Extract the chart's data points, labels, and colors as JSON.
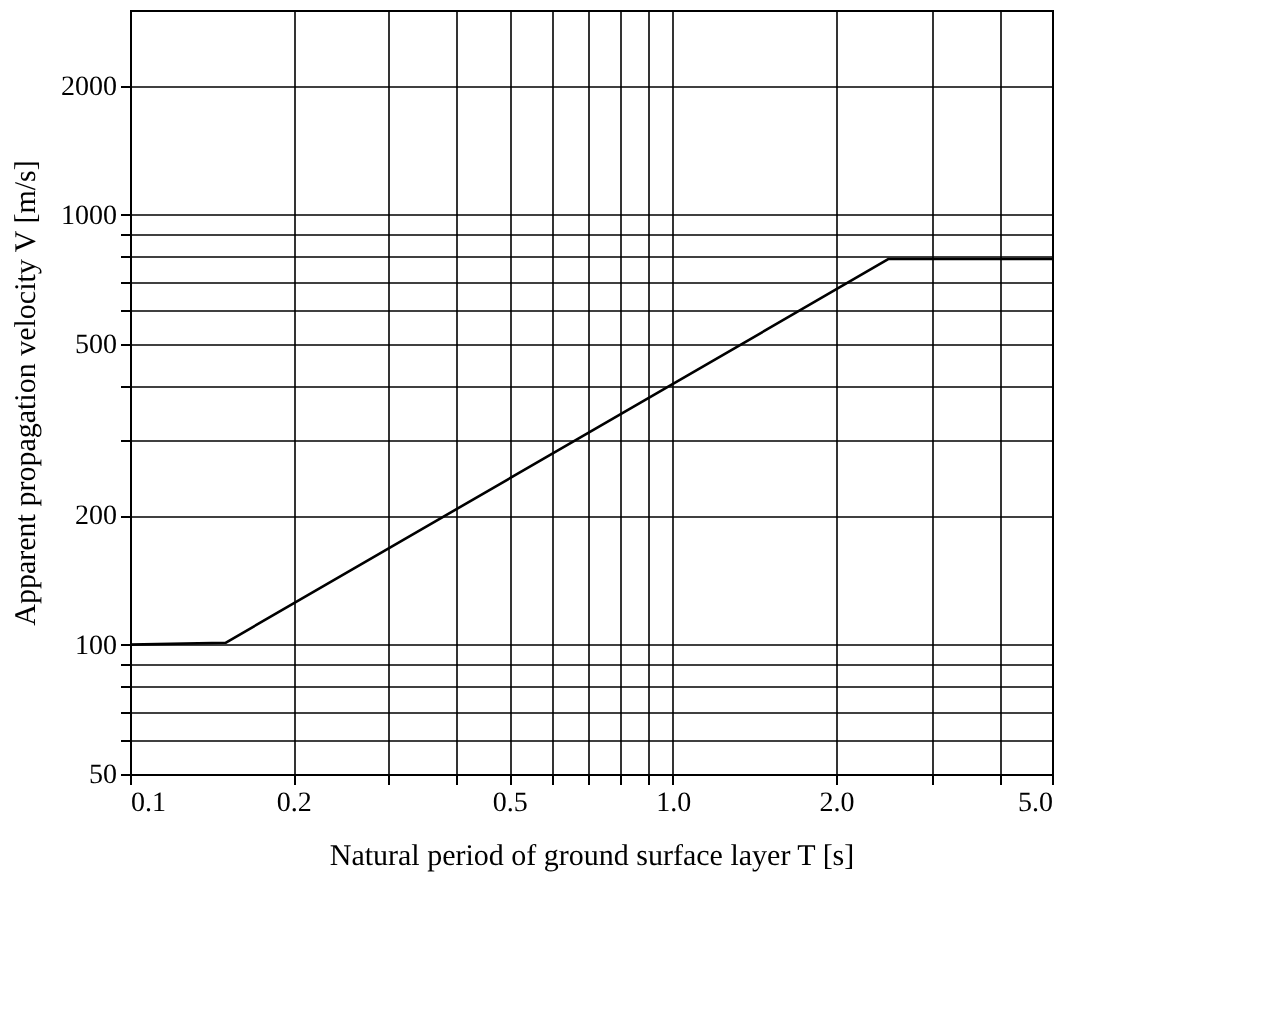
{
  "chart_data": {
    "type": "line",
    "xlabel": "Natural period of ground surface layer T [s]",
    "ylabel": "Apparent propagation velocity V [m/s]",
    "log": "xy",
    "grid": true,
    "marker": "none",
    "line_style": "solid",
    "xlim": [
      0.1,
      5.0
    ],
    "ylim": [
      50,
      3000
    ],
    "xticks": [
      0.1,
      0.2,
      {
        "value": 0.3,
        "label": null
      },
      {
        "value": 0.4,
        "label": null
      },
      0.5,
      {
        "value": 0.6,
        "label": null
      },
      {
        "value": 0.7,
        "label": null
      },
      {
        "value": 0.8,
        "label": null
      },
      {
        "value": 0.9,
        "label": null
      },
      {
        "value": 1.0,
        "label": "1.0"
      },
      {
        "value": 2.0,
        "label": "2.0"
      },
      {
        "value": 3.0,
        "label": null
      },
      {
        "value": 4.0,
        "label": null
      },
      {
        "value": 5.0,
        "label": "5.0"
      }
    ],
    "yticks": [
      50,
      {
        "value": 60,
        "label": null
      },
      {
        "value": 70,
        "label": null
      },
      {
        "value": 80,
        "label": null
      },
      {
        "value": 90,
        "label": null
      },
      100,
      200,
      {
        "value": 300,
        "label": null
      },
      {
        "value": 400,
        "label": null
      },
      500,
      {
        "value": 600,
        "label": null
      },
      {
        "value": 700,
        "label": null
      },
      {
        "value": 800,
        "label": null
      },
      {
        "value": 900,
        "label": null
      },
      1000,
      2000
    ],
    "x": [
      0.1,
      0.15,
      2.5,
      5.0
    ],
    "series": [
      {
        "color": "#000000",
        "values": [
          100,
          101,
          790,
          790
        ]
      }
    ]
  }
}
